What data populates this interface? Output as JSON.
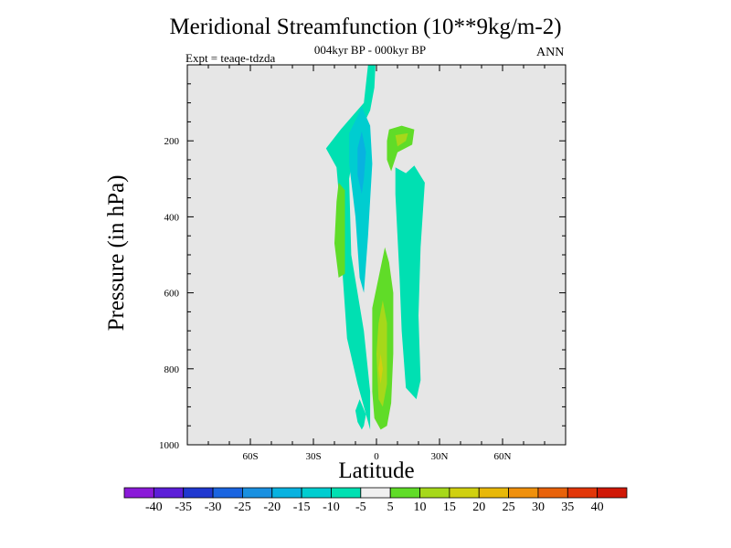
{
  "chart_data": {
    "type": "contour",
    "title": "Meridional Streamfunction (10**9kg/m-2)",
    "subtitle": "004kyr BP - 000kyr BP",
    "left_label": "Expt = teaqe-tdzda",
    "right_label": "ANN",
    "xlabel": "Latitude",
    "ylabel": "Pressure (in hPa)",
    "xlim": [
      -90,
      90
    ],
    "ylim": [
      1000,
      0
    ],
    "x_ticks": [
      {
        "value": -60,
        "label": "60S"
      },
      {
        "value": -30,
        "label": "30S"
      },
      {
        "value": 0,
        "label": "0"
      },
      {
        "value": 30,
        "label": "30N"
      },
      {
        "value": 60,
        "label": "60N"
      }
    ],
    "y_ticks": [
      {
        "value": 200,
        "label": "200"
      },
      {
        "value": 400,
        "label": "400"
      },
      {
        "value": 600,
        "label": "600"
      },
      {
        "value": 800,
        "label": "800"
      },
      {
        "value": 1000,
        "label": "1000"
      }
    ],
    "background_color": "#e6e6e6",
    "colorbar": {
      "colors": [
        "#8a1ad8",
        "#5c1ed8",
        "#2038d0",
        "#1a64e0",
        "#1a90e0",
        "#08b2e0",
        "#00cdd0",
        "#00e0b2",
        "#f0f0f0",
        "#60dc28",
        "#a6d81a",
        "#d0d010",
        "#e8b808",
        "#f0900c",
        "#e8620a",
        "#e23608",
        "#d01806"
      ],
      "labels": [
        "-40",
        "-35",
        "-30",
        "-25",
        "-20",
        "-15",
        "-10",
        "-5",
        "5",
        "10",
        "15",
        "20",
        "25",
        "30",
        "35",
        "40"
      ]
    },
    "contours": [
      {
        "level": -5,
        "color": "#00e0b2",
        "points": [
          [
            -4,
            0
          ],
          [
            -0.5,
            0
          ],
          [
            -1,
            60
          ],
          [
            -3,
            120
          ],
          [
            -10,
            200
          ],
          [
            -13,
            300
          ],
          [
            -12,
            500
          ],
          [
            -6,
            700
          ],
          [
            -3,
            860
          ],
          [
            -3,
            960
          ],
          [
            -9,
            840
          ],
          [
            -14,
            720
          ],
          [
            -16,
            560
          ],
          [
            -17,
            400
          ],
          [
            -19,
            270
          ],
          [
            -24,
            220
          ],
          [
            -17,
            170
          ],
          [
            -6,
            100
          ]
        ]
      },
      {
        "level": -5,
        "color": "#00e0b2",
        "points": [
          [
            9,
            270
          ],
          [
            14,
            285
          ],
          [
            18,
            265
          ],
          [
            23,
            310
          ],
          [
            21,
            480
          ],
          [
            20,
            660
          ],
          [
            21,
            830
          ],
          [
            19,
            880
          ],
          [
            14,
            850
          ],
          [
            12,
            700
          ],
          [
            11,
            560
          ],
          [
            10,
            450
          ],
          [
            9,
            340
          ]
        ]
      },
      {
        "level": -5,
        "color": "#00e0b2",
        "points": [
          [
            -8,
            880
          ],
          [
            -5,
            920
          ],
          [
            -6,
            950
          ],
          [
            -7,
            960
          ],
          [
            -9,
            940
          ],
          [
            -10,
            910
          ]
        ]
      },
      {
        "level": -10,
        "color": "#00cdd0",
        "points": [
          [
            -7,
            110
          ],
          [
            -3,
            160
          ],
          [
            -2,
            260
          ],
          [
            -4,
            450
          ],
          [
            -6,
            600
          ],
          [
            -8,
            560
          ],
          [
            -10,
            400
          ],
          [
            -13,
            260
          ],
          [
            -13,
            180
          ],
          [
            -9,
            135
          ]
        ]
      },
      {
        "level": -15,
        "color": "#08b2e0",
        "points": [
          [
            -7,
            175
          ],
          [
            -5,
            230
          ],
          [
            -6,
            300
          ],
          [
            -7,
            340
          ],
          [
            -9,
            290
          ],
          [
            -9,
            220
          ]
        ]
      },
      {
        "level": 5,
        "color": "#60dc28",
        "points": [
          [
            -18,
            310
          ],
          [
            -15,
            330
          ],
          [
            -15,
            550
          ],
          [
            -18,
            560
          ],
          [
            -20,
            470
          ],
          [
            -19,
            360
          ]
        ]
      },
      {
        "level": 5,
        "color": "#60dc28",
        "points": [
          [
            6,
            170
          ],
          [
            12,
            160
          ],
          [
            18,
            170
          ],
          [
            17,
            210
          ],
          [
            10,
            230
          ],
          [
            7,
            280
          ],
          [
            5,
            250
          ],
          [
            5,
            200
          ]
        ]
      },
      {
        "level": 5,
        "color": "#60dc28",
        "points": [
          [
            4,
            480
          ],
          [
            6,
            520
          ],
          [
            8,
            600
          ],
          [
            8,
            760
          ],
          [
            7,
            890
          ],
          [
            5,
            950
          ],
          [
            2,
            960
          ],
          [
            -1,
            930
          ],
          [
            -2,
            860
          ],
          [
            -2,
            640
          ],
          [
            1,
            560
          ]
        ]
      },
      {
        "level": 10,
        "color": "#a6d81a",
        "points": [
          [
            9,
            185
          ],
          [
            15,
            180
          ],
          [
            14,
            200
          ],
          [
            10,
            215
          ]
        ]
      },
      {
        "level": 10,
        "color": "#a6d81a",
        "points": [
          [
            3,
            620
          ],
          [
            5,
            680
          ],
          [
            5,
            840
          ],
          [
            3,
            900
          ],
          [
            1,
            880
          ],
          [
            0,
            760
          ],
          [
            1,
            680
          ]
        ]
      },
      {
        "level": 15,
        "color": "#d0d010",
        "points": [
          [
            2,
            760
          ],
          [
            3,
            800
          ],
          [
            2,
            840
          ],
          [
            1,
            800
          ]
        ]
      }
    ]
  }
}
